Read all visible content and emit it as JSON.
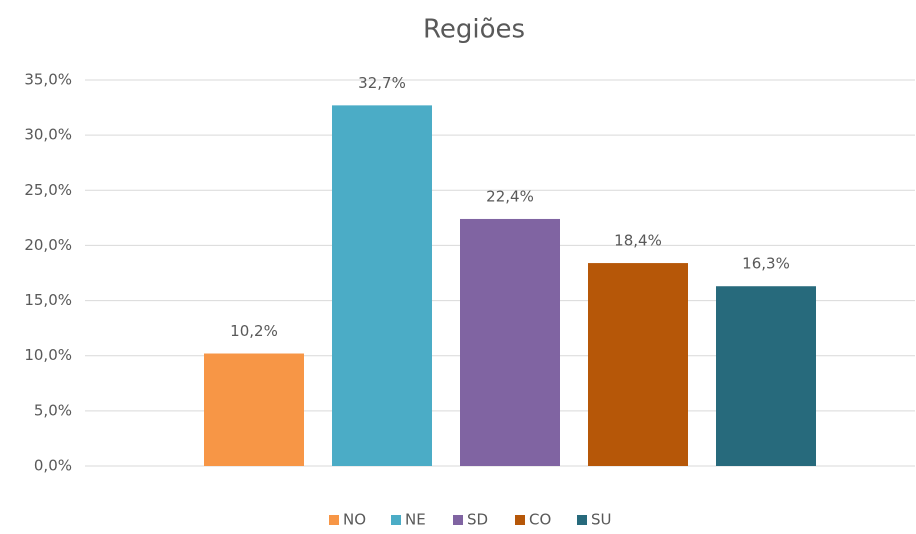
{
  "chart_data": {
    "type": "bar",
    "title": "Regiões",
    "categories": [
      null
    ],
    "series": [
      {
        "name": "NO",
        "color": "#f79646",
        "values": [
          10.2
        ],
        "value_labels": [
          "10,2%"
        ]
      },
      {
        "name": "NE",
        "color": "#4bacc6",
        "values": [
          32.7
        ],
        "value_labels": [
          "32,7%"
        ]
      },
      {
        "name": "SD",
        "color": "#8064a2",
        "values": [
          22.4
        ],
        "value_labels": [
          "22,4%"
        ]
      },
      {
        "name": "CO",
        "color": "#b65708",
        "values": [
          18.4
        ],
        "value_labels": [
          "18,4%"
        ]
      },
      {
        "name": "SU",
        "color": "#276a7c",
        "values": [
          16.3
        ],
        "value_labels": [
          "16,3%"
        ]
      }
    ],
    "ylim": [
      0,
      35
    ],
    "yticks": [
      {
        "value": 0,
        "label": "0,0%"
      },
      {
        "value": 5,
        "label": "5,0%"
      },
      {
        "value": 10,
        "label": "10,0%"
      },
      {
        "value": 15,
        "label": "15,0%"
      },
      {
        "value": 20,
        "label": "20,0%"
      },
      {
        "value": 25,
        "label": "25,0%"
      },
      {
        "value": 30,
        "label": "30,0%"
      },
      {
        "value": 35,
        "label": "35,0%"
      }
    ],
    "grid": true,
    "legend": "bottom"
  }
}
